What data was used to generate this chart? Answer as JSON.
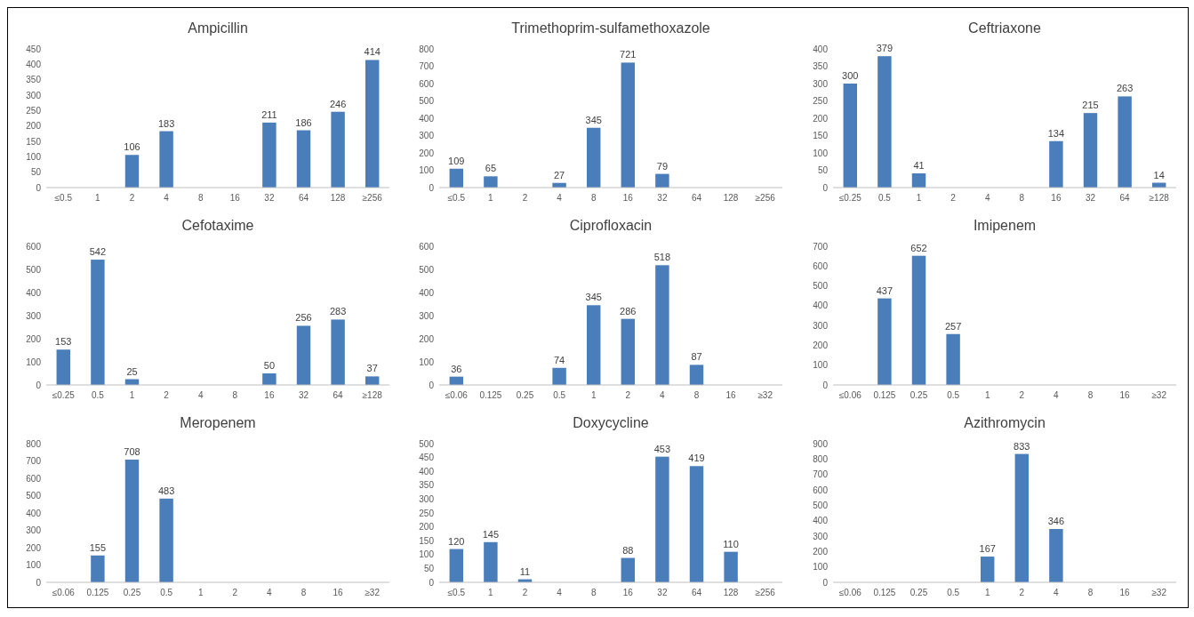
{
  "chart_data": [
    {
      "type": "bar",
      "title": "Ampicillin",
      "categories": [
        "≤0.5",
        "1",
        "2",
        "4",
        "8",
        "16",
        "32",
        "64",
        "128",
        "≥256"
      ],
      "values": [
        0,
        0,
        106,
        183,
        0,
        0,
        211,
        186,
        246,
        414
      ],
      "value_labels": [
        null,
        null,
        "106",
        "183",
        null,
        null,
        "211",
        "186",
        "246",
        "414"
      ],
      "color": "#4a7ebb",
      "ylim": [
        0,
        450
      ],
      "yticks": [
        0,
        50,
        100,
        150,
        200,
        250,
        300,
        350,
        400,
        450
      ],
      "grid": false
    },
    {
      "type": "bar",
      "title": "Trimethoprim-sulfamethoxazole",
      "categories": [
        "≤0.5",
        "1",
        "2",
        "4",
        "8",
        "16",
        "32",
        "64",
        "128",
        "≥256"
      ],
      "values": [
        109,
        65,
        0,
        27,
        345,
        721,
        79,
        0,
        0,
        0
      ],
      "value_labels": [
        "109",
        "65",
        null,
        "27",
        "345",
        "721",
        "79",
        null,
        null,
        null
      ],
      "color": "#4a7ebb",
      "ylim": [
        0,
        800
      ],
      "yticks": [
        0,
        100,
        200,
        300,
        400,
        500,
        600,
        700,
        800
      ],
      "grid": false
    },
    {
      "type": "bar",
      "title": "Ceftriaxone",
      "categories": [
        "≤0.25",
        "0.5",
        "1",
        "2",
        "4",
        "8",
        "16",
        "32",
        "64",
        "≥128"
      ],
      "values": [
        300,
        379,
        41,
        0,
        0,
        0,
        134,
        215,
        263,
        14
      ],
      "value_labels": [
        "300",
        "379",
        "41",
        null,
        null,
        null,
        "134",
        "215",
        "263",
        "14"
      ],
      "color": "#4a7ebb",
      "ylim": [
        0,
        400
      ],
      "yticks": [
        0,
        50,
        100,
        150,
        200,
        250,
        300,
        350,
        400
      ],
      "grid": false
    },
    {
      "type": "bar",
      "title": "Cefotaxime",
      "categories": [
        "≤0.25",
        "0.5",
        "1",
        "2",
        "4",
        "8",
        "16",
        "32",
        "64",
        "≥128"
      ],
      "values": [
        153,
        542,
        25,
        0,
        0,
        0,
        50,
        256,
        283,
        37
      ],
      "value_labels": [
        "153",
        "542",
        "25",
        null,
        null,
        null,
        "50",
        "256",
        "283",
        "37"
      ],
      "color": "#4a7ebb",
      "ylim": [
        0,
        600
      ],
      "yticks": [
        0,
        100,
        200,
        300,
        400,
        500,
        600
      ],
      "grid": false
    },
    {
      "type": "bar",
      "title": "Ciprofloxacin",
      "categories": [
        "≤0.06",
        "0.125",
        "0.25",
        "0.5",
        "1",
        "2",
        "4",
        "8",
        "16",
        "≥32"
      ],
      "values": [
        36,
        0,
        0,
        74,
        345,
        286,
        518,
        87,
        0,
        0
      ],
      "value_labels": [
        "36",
        null,
        null,
        "74",
        "345",
        "286",
        "518",
        "87",
        null,
        null
      ],
      "color": "#4a7ebb",
      "ylim": [
        0,
        600
      ],
      "yticks": [
        0,
        100,
        200,
        300,
        400,
        500,
        600
      ],
      "grid": false
    },
    {
      "type": "bar",
      "title": "Imipenem",
      "categories": [
        "≤0.06",
        "0.125",
        "0.25",
        "0.5",
        "1",
        "2",
        "4",
        "8",
        "16",
        "≥32"
      ],
      "values": [
        0,
        437,
        652,
        257,
        0,
        0,
        0,
        0,
        0,
        0
      ],
      "value_labels": [
        null,
        "437",
        "652",
        "257",
        null,
        null,
        null,
        null,
        null,
        null
      ],
      "color": "#4a7ebb",
      "ylim": [
        0,
        700
      ],
      "yticks": [
        0,
        100,
        200,
        300,
        400,
        500,
        600,
        700
      ],
      "grid": false
    },
    {
      "type": "bar",
      "title": "Meropenem",
      "categories": [
        "≤0.06",
        "0.125",
        "0.25",
        "0.5",
        "1",
        "2",
        "4",
        "8",
        "16",
        "≥32"
      ],
      "values": [
        0,
        155,
        708,
        483,
        0,
        0,
        0,
        0,
        0,
        0
      ],
      "value_labels": [
        null,
        "155",
        "708",
        "483",
        null,
        null,
        null,
        null,
        null,
        null
      ],
      "color": "#4a7ebb",
      "ylim": [
        0,
        800
      ],
      "yticks": [
        0,
        100,
        200,
        300,
        400,
        500,
        600,
        700,
        800
      ],
      "grid": false
    },
    {
      "type": "bar",
      "title": "Doxycycline",
      "categories": [
        "≤0.5",
        "1",
        "2",
        "4",
        "8",
        "16",
        "32",
        "64",
        "128",
        "≥256"
      ],
      "values": [
        120,
        145,
        11,
        0,
        0,
        88,
        453,
        419,
        110,
        0
      ],
      "value_labels": [
        "120",
        "145",
        "11",
        null,
        null,
        "88",
        "453",
        "419",
        "110",
        null
      ],
      "color": "#4a7ebb",
      "ylim": [
        0,
        500
      ],
      "yticks": [
        0,
        50,
        100,
        150,
        200,
        250,
        300,
        350,
        400,
        450,
        500
      ],
      "grid": false
    },
    {
      "type": "bar",
      "title": "Azithromycin",
      "categories": [
        "≤0.06",
        "0.125",
        "0.25",
        "0.5",
        "1",
        "2",
        "4",
        "8",
        "16",
        "≥32"
      ],
      "values": [
        0,
        0,
        0,
        0,
        167,
        833,
        346,
        0,
        0,
        0
      ],
      "value_labels": [
        null,
        null,
        null,
        null,
        "167",
        "833",
        "346",
        null,
        null,
        null
      ],
      "color": "#4a7ebb",
      "ylim": [
        0,
        900
      ],
      "yticks": [
        0,
        100,
        200,
        300,
        400,
        500,
        600,
        700,
        800,
        900
      ],
      "grid": false
    }
  ]
}
